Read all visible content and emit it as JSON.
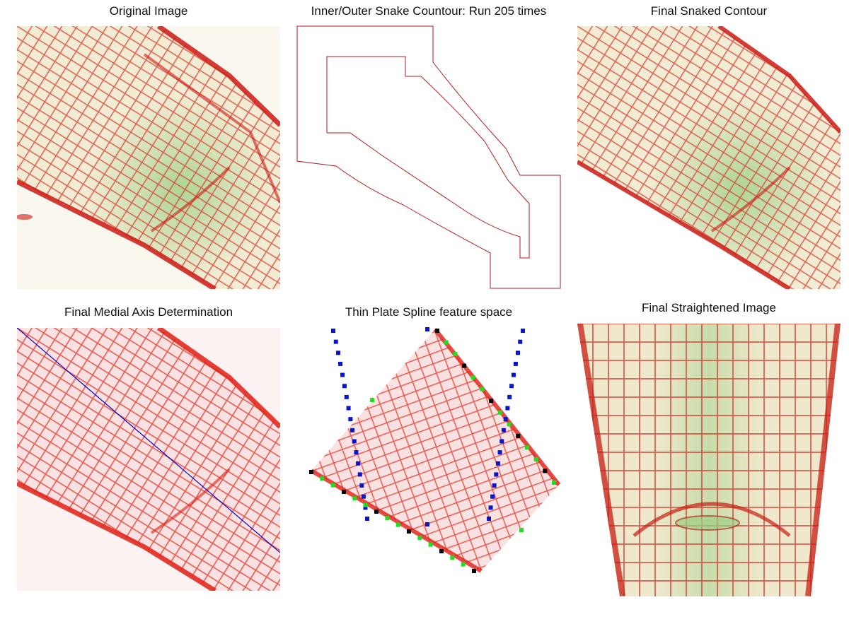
{
  "figure": {
    "panels": [
      {
        "id": "original",
        "title": "Original Image"
      },
      {
        "id": "snake",
        "title": "Inner/Outer Snake Countour: Run 205 times"
      },
      {
        "id": "snaked",
        "title": "Final Snaked Contour"
      },
      {
        "id": "medial",
        "title": "Final Medial Axis Determination"
      },
      {
        "id": "tps",
        "title": "Thin Plate Spline feature space"
      },
      {
        "id": "straight",
        "title": "Final Straightened Image"
      }
    ]
  },
  "colors": {
    "cell_wall_red": "#d81e14",
    "tissue_cream": "#f3efdc",
    "cell_green": "#b8d9a0",
    "contour_line": "#b21e1e",
    "medial_axis": "#0000cc",
    "tps_blue": "#0a14c8",
    "tps_green": "#22dd22",
    "tps_black": "#000000"
  },
  "icons": {
    "tissue": "root-tip-micrograph"
  }
}
